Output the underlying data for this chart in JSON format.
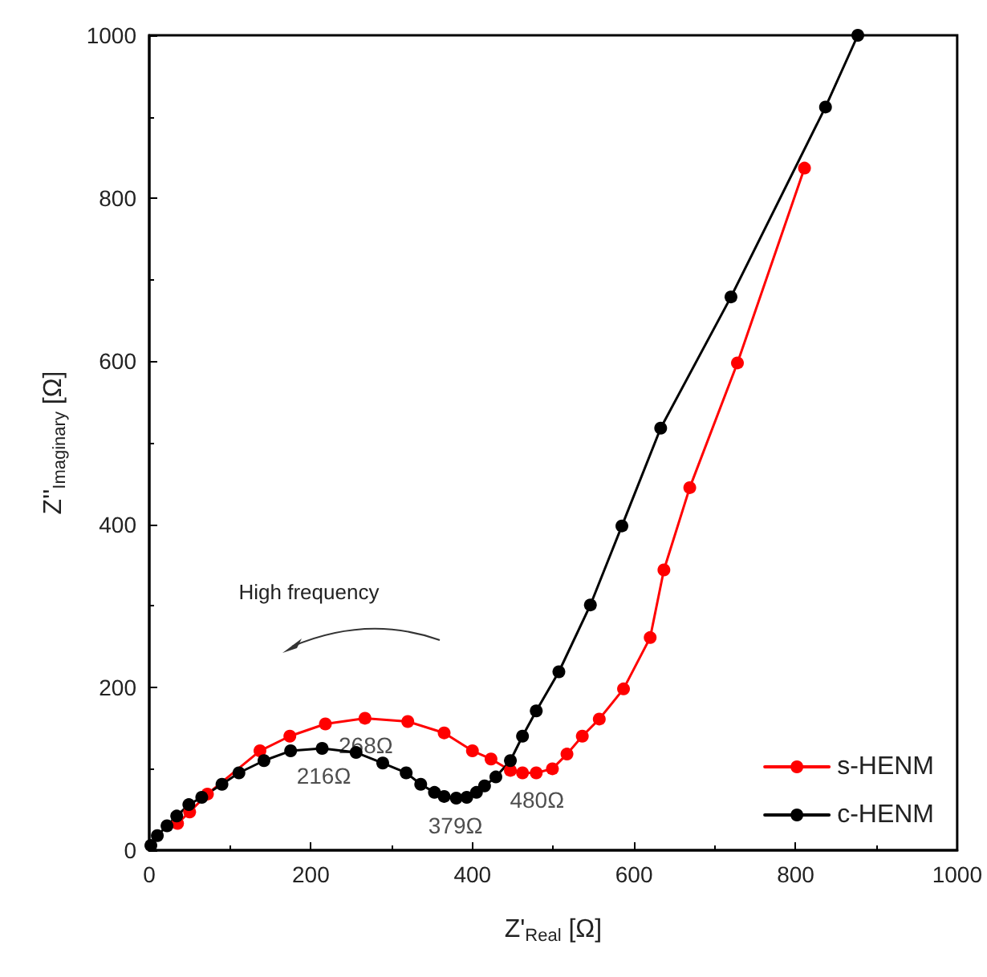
{
  "chart_data": {
    "type": "line",
    "xlabel": "Z'$_{Real}$ [Ω]",
    "ylabel": "Z''$_{Imaginary}$ [Ω]",
    "xlim": [
      0,
      1000
    ],
    "xticks": [
      0,
      200,
      400,
      600,
      800,
      1000
    ],
    "ylim": [
      0,
      1000
    ],
    "yticks": [
      0,
      200,
      400,
      600,
      800,
      1000
    ],
    "grid": false,
    "legend": "bottom right",
    "marker": "circle",
    "line_style": "solid",
    "series": [
      {
        "name": "s-HENM",
        "color": "#ff0000",
        "x": [
          35,
          50,
          72,
          137,
          174,
          218,
          267,
          320,
          365,
          400,
          423,
          447,
          462,
          479,
          499,
          517,
          536,
          557,
          587,
          620,
          637,
          669,
          728,
          811
        ],
        "values": [
          33,
          47,
          69,
          122,
          140,
          155,
          162,
          158,
          144,
          122,
          112,
          98,
          95,
          95,
          100,
          118,
          140,
          161,
          198,
          261,
          344,
          445,
          598,
          837
        ]
      },
      {
        "name": "c-HENM",
        "color": "#000000",
        "x": [
          2,
          10,
          22,
          34,
          49,
          65,
          90,
          111,
          142,
          175,
          214,
          256,
          289,
          318,
          336,
          353,
          365,
          380,
          393,
          405,
          415,
          429,
          447,
          462,
          479,
          507,
          546,
          585,
          633,
          720,
          837,
          877
        ],
        "values": [
          6,
          18,
          30,
          42,
          56,
          65,
          81,
          95,
          110,
          122,
          125,
          120,
          107,
          95,
          81,
          71,
          66,
          64,
          65,
          71,
          79,
          90,
          110,
          140,
          171,
          219,
          301,
          398,
          518,
          679,
          912,
          1000
        ]
      }
    ],
    "annotations": [
      "High frequency",
      {
        "text": "268Ω",
        "x": 268,
        "y": 162
      },
      {
        "text": "216Ω",
        "x": 216,
        "y": 125
      },
      {
        "text": "379Ω",
        "x": 379,
        "y": 64
      },
      {
        "text": "480Ω",
        "x": 480,
        "y": 95
      }
    ]
  }
}
